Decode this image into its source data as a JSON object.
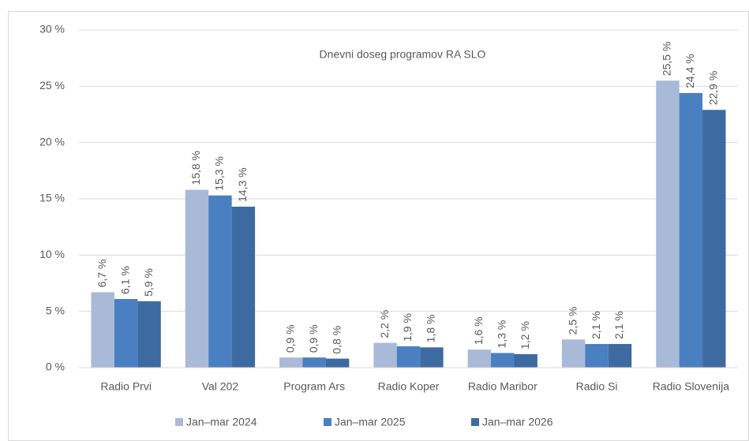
{
  "chart_data": {
    "type": "bar",
    "title": "Dnevni doseg programov RA SLO",
    "categories": [
      "Radio Prvi",
      "Val 202",
      "Program Ars",
      "Radio Koper",
      "Radio Maribor",
      "Radio Si",
      "Radio Slovenija"
    ],
    "series": [
      {
        "name": "Jan–mar 2024",
        "color": "#a9b9d8",
        "values": [
          6.7,
          15.8,
          0.9,
          2.2,
          1.6,
          2.5,
          25.5
        ],
        "value_labels": [
          "6,7 %",
          "15,8 %",
          "0,9 %",
          "2,2 %",
          "1,6 %",
          "2,5 %",
          "25,5 %"
        ]
      },
      {
        "name": "Jan–mar 2025",
        "color": "#4a7fc1",
        "values": [
          6.1,
          15.3,
          0.9,
          1.9,
          1.3,
          2.1,
          24.4
        ],
        "value_labels": [
          "6,1 %",
          "15,3 %",
          "0,9 %",
          "1,9 %",
          "1,3 %",
          "2,1 %",
          "24,4 %"
        ]
      },
      {
        "name": "Jan–mar 2026",
        "color": "#3d6aa0",
        "values": [
          5.9,
          14.3,
          0.8,
          1.8,
          1.2,
          2.1,
          22.9
        ],
        "value_labels": [
          "5,9 %",
          "14,3 %",
          "0,8 %",
          "1,8 %",
          "1,2 %",
          "2,1 %",
          "22,9 %"
        ]
      }
    ],
    "ylim": [
      0,
      30
    ],
    "yticks": [
      {
        "value": 0,
        "label": "0 %"
      },
      {
        "value": 5,
        "label": "5 %"
      },
      {
        "value": 10,
        "label": "10 %"
      },
      {
        "value": 15,
        "label": "15 %"
      },
      {
        "value": 20,
        "label": "20 %"
      },
      {
        "value": 25,
        "label": "25 %"
      },
      {
        "value": 30,
        "label": "30 %"
      }
    ],
    "grid": true,
    "legend": "bottom"
  }
}
